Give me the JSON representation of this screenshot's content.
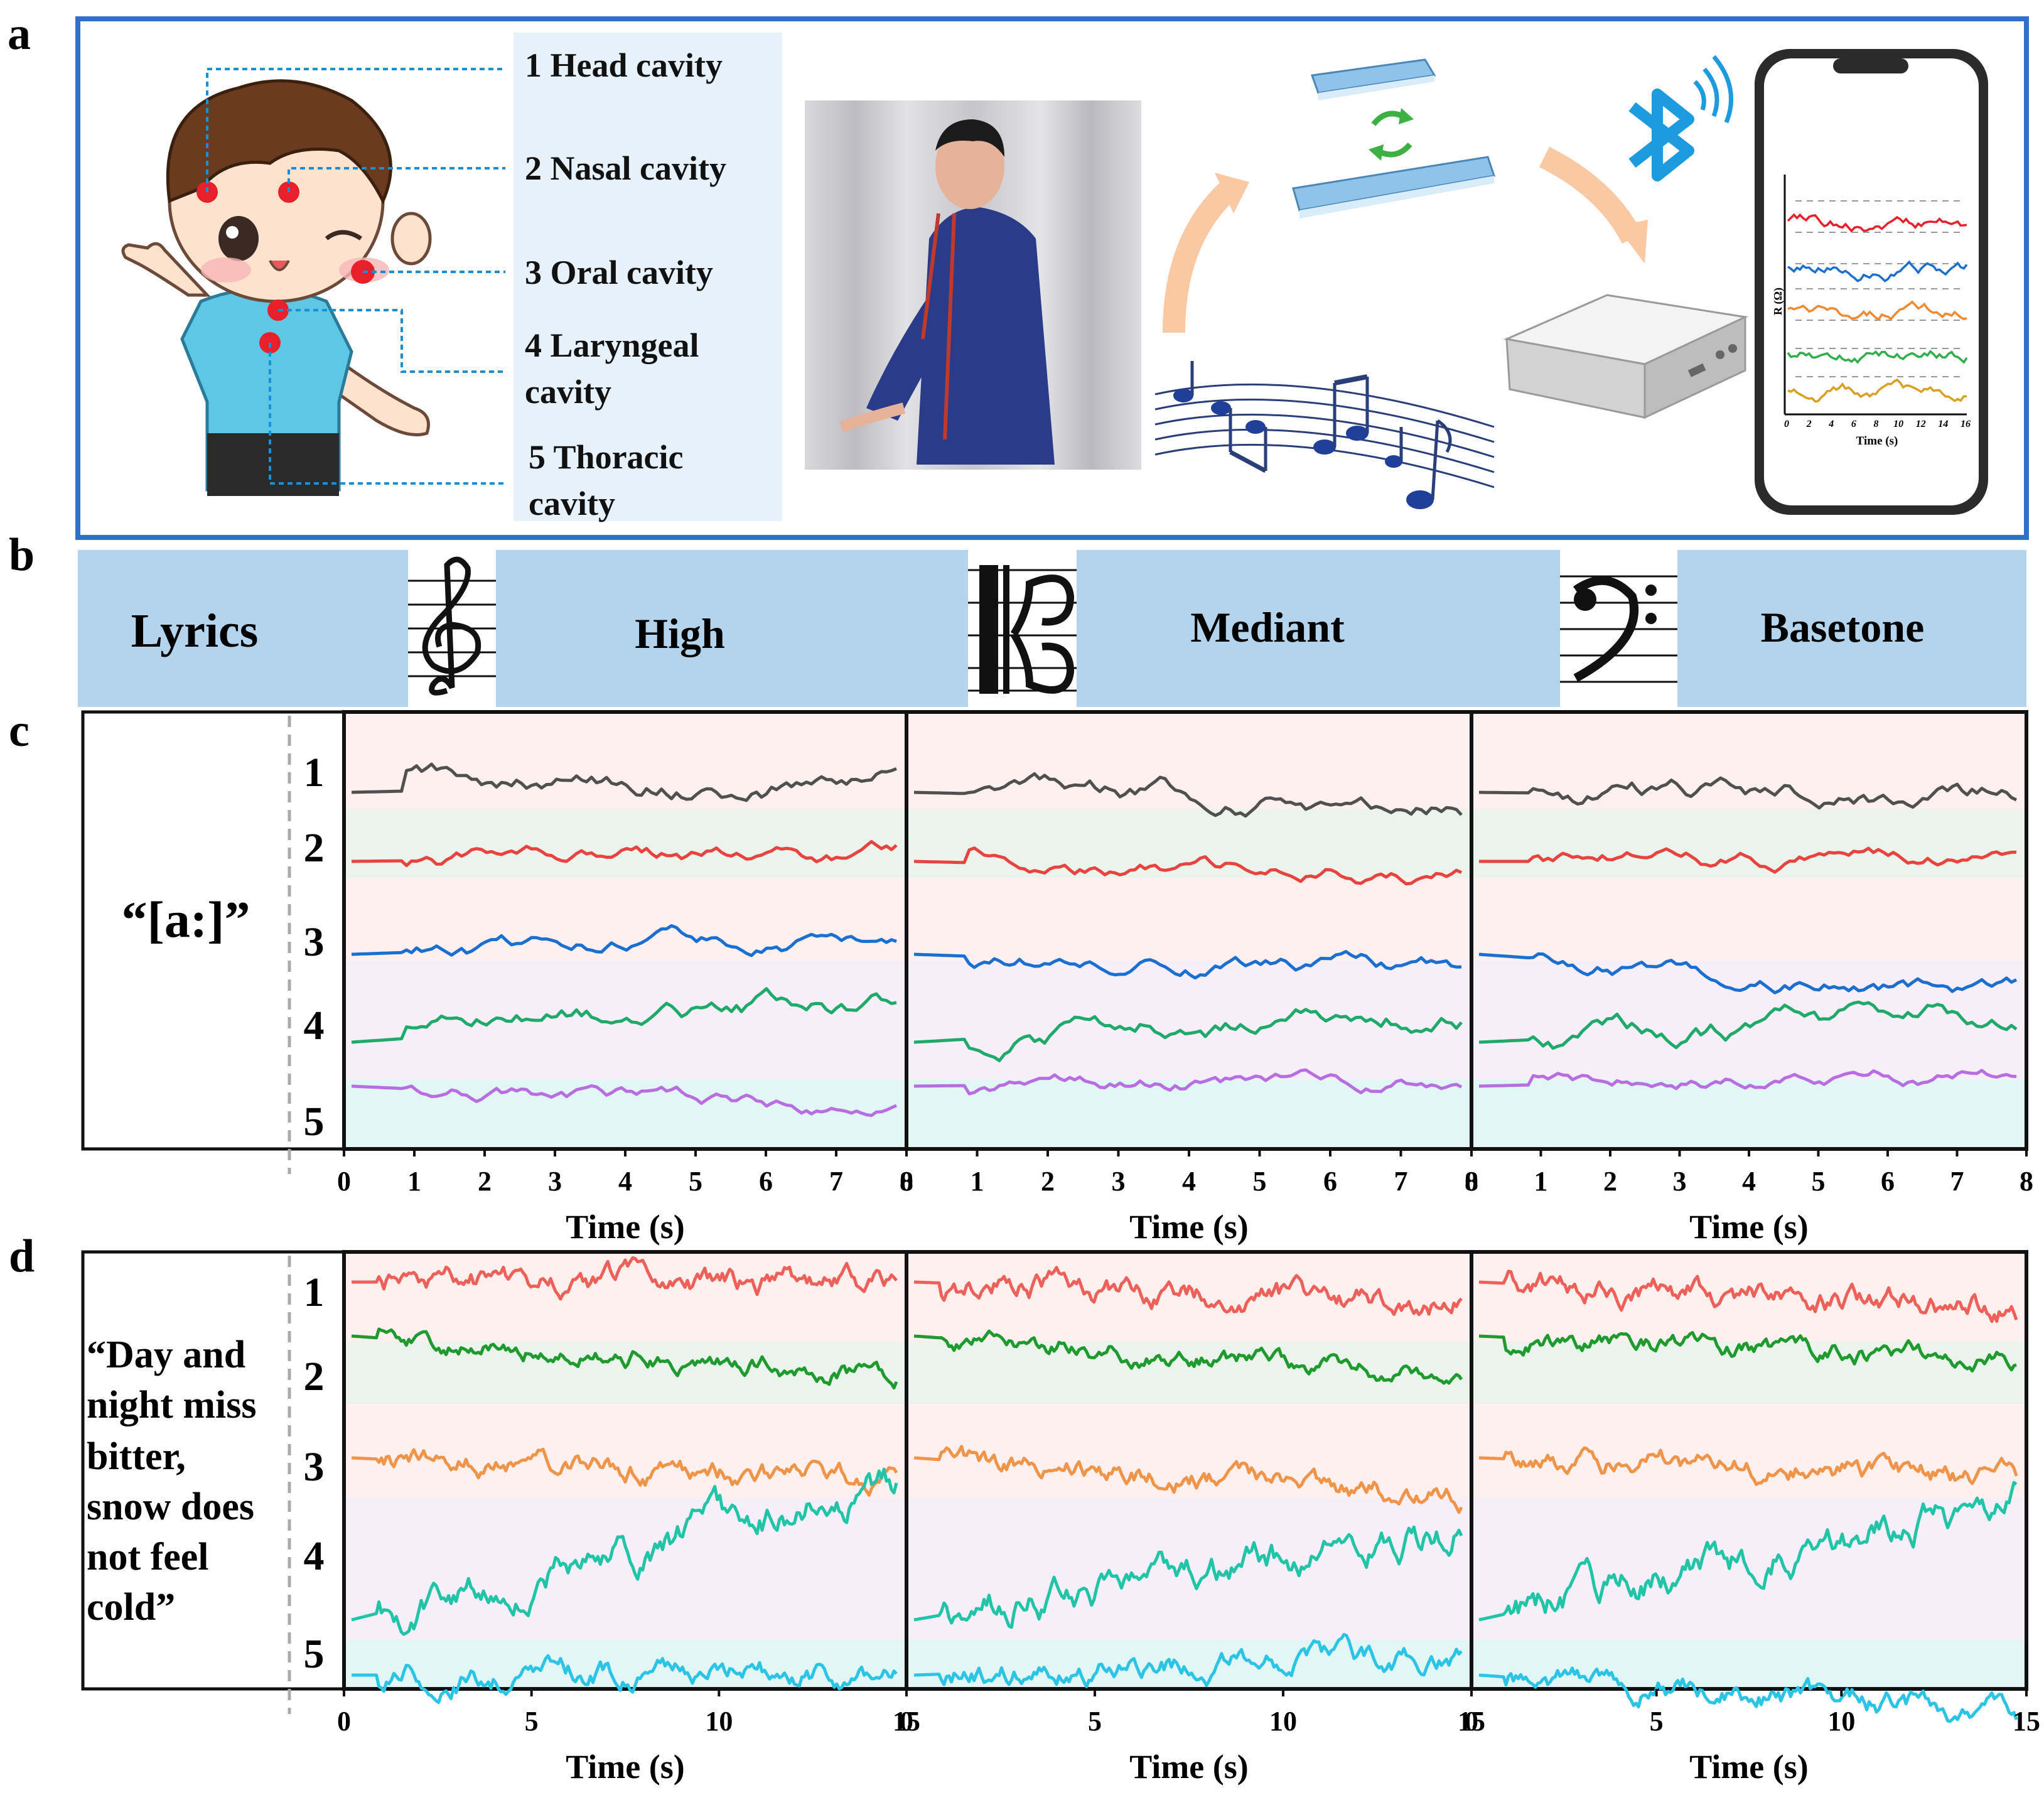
{
  "panels": {
    "a": "a",
    "b": "b",
    "c": "c",
    "d": "d"
  },
  "cavities": {
    "labels": [
      "1 Head cavity",
      "2 Nasal cavity",
      "3 Oral cavity",
      "4 Laryngeal",
      "cavity",
      "5 Thoracic",
      "cavity"
    ]
  },
  "phone_plot": {
    "ylabel": "R (Ω)",
    "xlabel": "Time (s)",
    "ticks": [
      "0",
      "2",
      "4",
      "6",
      "8",
      "10",
      "12",
      "14",
      "16"
    ]
  },
  "pitch_bar": {
    "lyrics": "Lyrics",
    "high": "High",
    "mediant": "Mediant",
    "basetone": "Basetone"
  },
  "row_c": {
    "lyric": "“[a:]”",
    "channels": [
      "1",
      "2",
      "3",
      "4",
      "5"
    ],
    "xticks": [
      "0",
      "1",
      "2",
      "3",
      "4",
      "5",
      "6",
      "7",
      "8"
    ],
    "xlabel": "Time (s)"
  },
  "row_d": {
    "lyric_lines": [
      "“Day   and",
      "night miss",
      "bitter,",
      "snow does",
      "not      feel",
      "cold”"
    ],
    "channels": [
      "1",
      "2",
      "3",
      "4",
      "5"
    ],
    "xticks": [
      "0",
      "5",
      "10",
      "15"
    ],
    "xlabel": "Time (s)"
  },
  "colors": {
    "frame_blue": "#2f6fc6",
    "bar_blue": "#b3d4ec",
    "c_traces": [
      "#505050",
      "#e8433f",
      "#1b6fd0",
      "#1faa6a",
      "#b86ee0"
    ],
    "d_traces": [
      "#f0605a",
      "#1e9a2e",
      "#f0944a",
      "#22c4a8",
      "#2cc4e4"
    ],
    "band_pink": "#fdf0ee",
    "band_green": "#eaf4ec",
    "band_lavender": "#f6eef8",
    "band_cyan": "#e2f6f6"
  }
}
